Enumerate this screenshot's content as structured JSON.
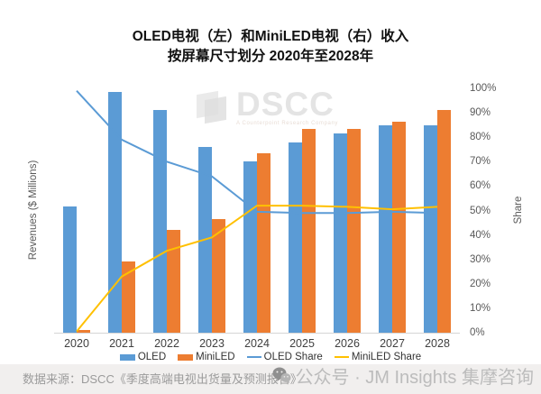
{
  "title": {
    "line1": "OLED电视（左）和MiniLED电视（右）收入",
    "line2": "按屏幕尺寸划分 2020年至2028年"
  },
  "chart_data": {
    "type": "bar",
    "subtype": "clustered-bar-with-lines-combo",
    "categories": [
      "2020",
      "2021",
      "2022",
      "2023",
      "2024",
      "2025",
      "2026",
      "2027",
      "2028"
    ],
    "left_axis": {
      "label": "Revenues ($ Millions)",
      "tick_labels_visible": false
    },
    "right_axis": {
      "label": "Share",
      "range": [
        0,
        100
      ],
      "tick_step": 10,
      "tick_labels": [
        "0%",
        "10%",
        "20%",
        "30%",
        "40%",
        "50%",
        "60%",
        "70%",
        "80%",
        "90%",
        "100%"
      ]
    },
    "bar_series": [
      {
        "name": "OLED",
        "color": "#5B9BD5",
        "axis": "left",
        "values_pct_of_axis": [
          51.5,
          98.5,
          91,
          76,
          70,
          78,
          81.5,
          85,
          85
        ]
      },
      {
        "name": "MiniLED",
        "color": "#ED7D31",
        "axis": "left",
        "values_pct_of_axis": [
          1,
          29,
          42,
          46.5,
          73.5,
          83.5,
          83.5,
          86.5,
          91
        ]
      }
    ],
    "line_series": [
      {
        "name": "OLED Share",
        "color": "#5B9BD5",
        "axis": "right",
        "values_pct": [
          99,
          79,
          70,
          64,
          49.5,
          49,
          49,
          49.5,
          49
        ]
      },
      {
        "name": "MiniLED Share",
        "color": "#FFC000",
        "axis": "right",
        "values_pct": [
          0.5,
          23,
          33.5,
          39,
          52,
          52,
          51.5,
          50.5,
          51.5
        ]
      }
    ],
    "gridlines": false,
    "legend_position": "bottom"
  },
  "legend": {
    "items": [
      {
        "label": "OLED",
        "marker": "bar",
        "color": "#5B9BD5"
      },
      {
        "label": "MiniLED",
        "marker": "bar",
        "color": "#ED7D31"
      },
      {
        "label": "OLED Share",
        "marker": "line",
        "color": "#5B9BD5"
      },
      {
        "label": "MiniLED Share",
        "marker": "line",
        "color": "#FFC000"
      }
    ]
  },
  "watermark": {
    "logo_text": "DSCC",
    "tagline": "A Counterpoint Research Company"
  },
  "footer": {
    "source": "数据来源：DSCC《季度高端电视出货量及预测报告》",
    "wechat_text": "公众号 · JM Insights 集摩咨询"
  }
}
